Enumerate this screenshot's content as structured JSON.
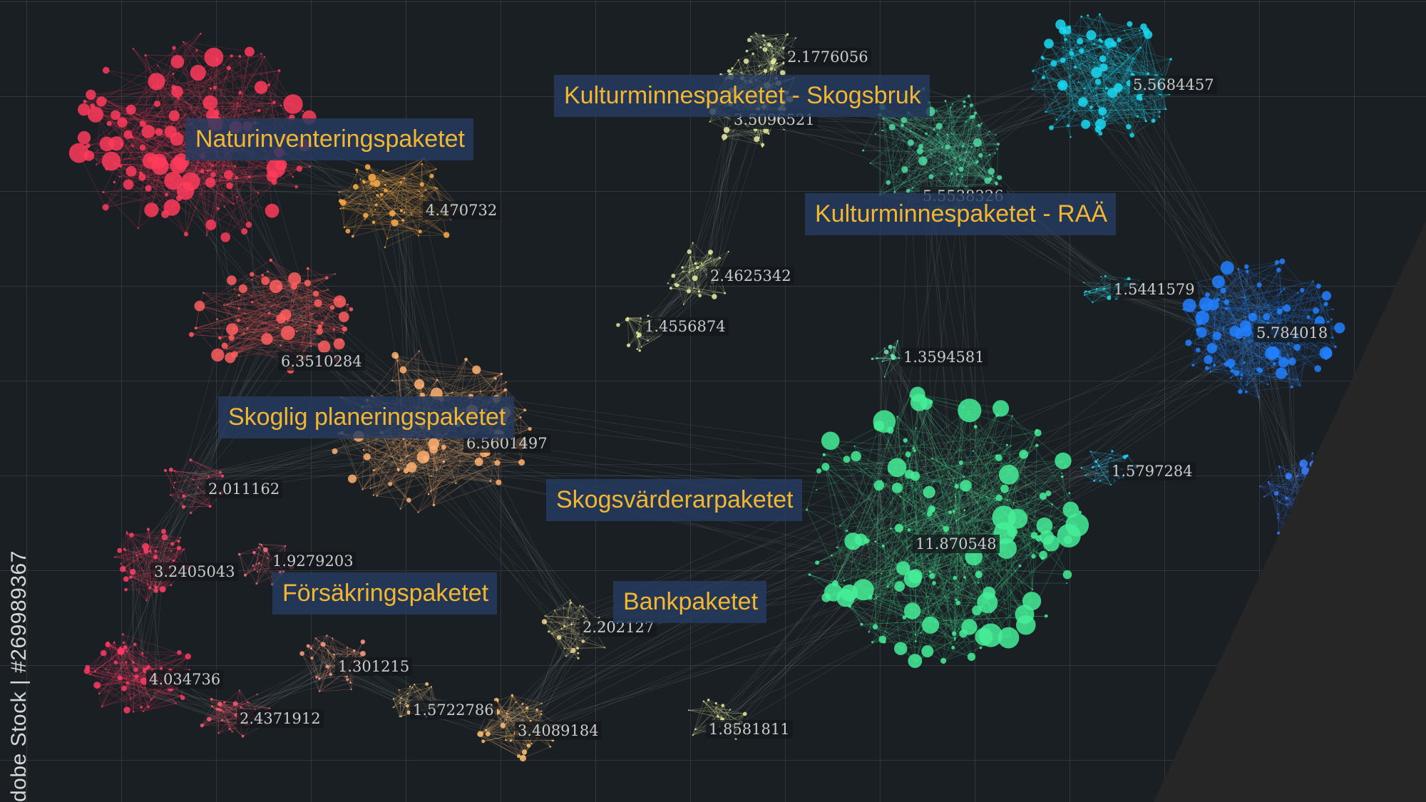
{
  "labels": {
    "natur": "Naturinventeringspaketet",
    "kultur_skog": "Kulturminnespaketet - Skogsbruk",
    "kultur_raa": "Kulturminnespaketet - RAÄ",
    "skoglig": "Skoglig planeringspaketet",
    "skogsvard": "Skogsvärderarpaketet",
    "forsakring": "Försäkringspaketet",
    "bank": "Bankpaketet"
  },
  "cluster_values": {
    "v1": "2.1776056",
    "v2": "5.5684457",
    "v3": "3.5096521",
    "v4": "5.5538326",
    "v5": "4.470732",
    "v6": "2.4625342",
    "v7": "1.5441579",
    "v8": "1.4556874",
    "v9": "5.784018",
    "v10": "6.3510284",
    "v11": "1.3594581",
    "v12": "6.5601497",
    "v13": "1.5797284",
    "v14": "2.011162",
    "v15": "11.870548",
    "v16": "1.9279203",
    "v17": "3.2405043",
    "v18": "2.202127",
    "v19": "1.301215",
    "v20": "4.034736",
    "v21": "1.5722786",
    "v22": "2.4371912",
    "v23": "3.4089184",
    "v24": "1.8581811"
  },
  "watermark": "dobe Stock | #269989367",
  "colors": {
    "background": "#1a1f24",
    "label_text": "#f2b630",
    "label_box": "#263c60",
    "corner_wedge": "#262626"
  }
}
